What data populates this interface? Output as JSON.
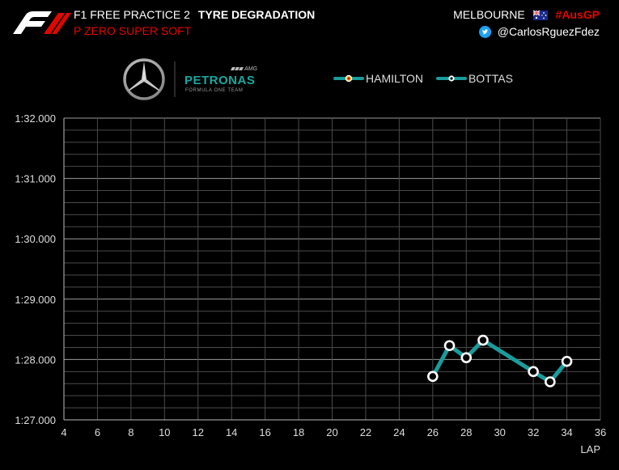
{
  "header": {
    "session": "F1 FREE PRACTICE 2",
    "topic": "TYRE DEGRADATION",
    "compound": "P ZERO SUPER SOFT",
    "location": "MELBOURNE",
    "hashtag": "#AusGP",
    "handle": "@CarlosRguezFdez"
  },
  "team_logo": {
    "brand": "PETRONAS",
    "sub": "FORMULA ONE TEAM",
    "amg": "AMG"
  },
  "colors": {
    "background": "#000000",
    "line": "#1a9c9c",
    "accent_red": "#e10600",
    "grid_major": "#9a9a9a",
    "grid_minor": "#4a4a4a"
  },
  "chart_data": {
    "type": "line",
    "xlabel": "LAP",
    "xlim": [
      4,
      36
    ],
    "xticks": [
      4,
      6,
      8,
      10,
      12,
      14,
      16,
      18,
      20,
      22,
      24,
      26,
      28,
      30,
      32,
      34,
      36
    ],
    "ylim": [
      87.0,
      92.0
    ],
    "ytick_values": [
      87,
      88,
      89,
      90,
      91,
      92
    ],
    "ytick_labels": [
      "1:27.000",
      "1:28.000",
      "1:29.000",
      "1:30.000",
      "1:31.000",
      "1:32.000"
    ],
    "minor_step": 0.2,
    "series": [
      {
        "name": "HAMILTON",
        "x": [],
        "y": []
      },
      {
        "name": "BOTTAS",
        "x": [
          26,
          27,
          28,
          29,
          32,
          33,
          34
        ],
        "y": [
          87.72,
          88.23,
          88.03,
          88.32,
          87.8,
          87.63,
          87.97
        ]
      }
    ]
  }
}
